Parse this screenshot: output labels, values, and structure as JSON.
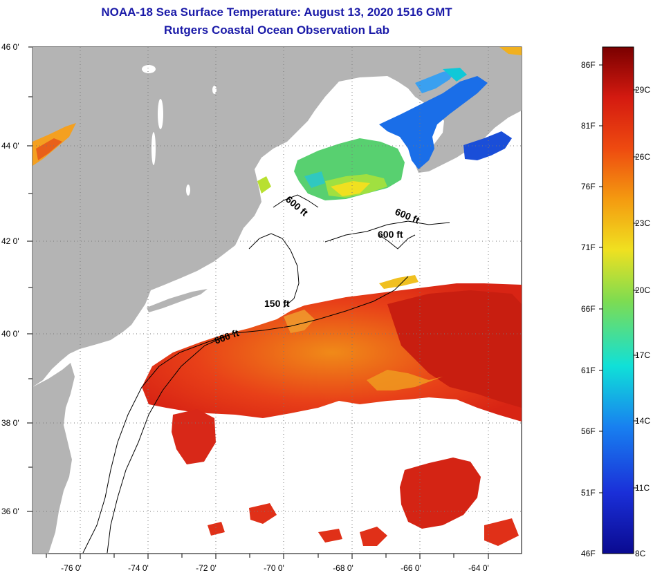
{
  "titles": {
    "line1": "NOAA-18 Sea Surface Temperature:  August 13, 2020 1516 GMT",
    "line2": "Rutgers Coastal Ocean Observation Lab"
  },
  "axes": {
    "lon_labels": [
      "-76 0'",
      "-74 0'",
      "-72 0'",
      "-70 0'",
      "-68 0'",
      "-66 0'",
      "-64 0'"
    ],
    "lat_labels": [
      "46 0'",
      "44 0'",
      "42 0'",
      "40 0'",
      "38 0'",
      "36 0'"
    ]
  },
  "contours": {
    "c1": "600 ft",
    "c2": "600 ft",
    "c3": "600 ft",
    "c4": "150 ft",
    "c5": "600 ft"
  },
  "colorbar": {
    "f_labels": [
      "86F",
      "81F",
      "76F",
      "71F",
      "66F",
      "61F",
      "56F",
      "51F",
      "46F"
    ],
    "c_labels": [
      "29C",
      "26C",
      "23C",
      "20C",
      "17C",
      "14C",
      "11C",
      "8C"
    ],
    "colors": [
      "#7a0000",
      "#d41a10",
      "#ee4a10",
      "#f49a10",
      "#f0e020",
      "#7fdc50",
      "#10e0d8",
      "#1880f0",
      "#1a2fd8",
      "#0a0a90"
    ]
  },
  "colors": {
    "land": "#b4b4b4",
    "title": "#1a1aa8",
    "warm": "#e03018",
    "hot": "#c82010"
  }
}
